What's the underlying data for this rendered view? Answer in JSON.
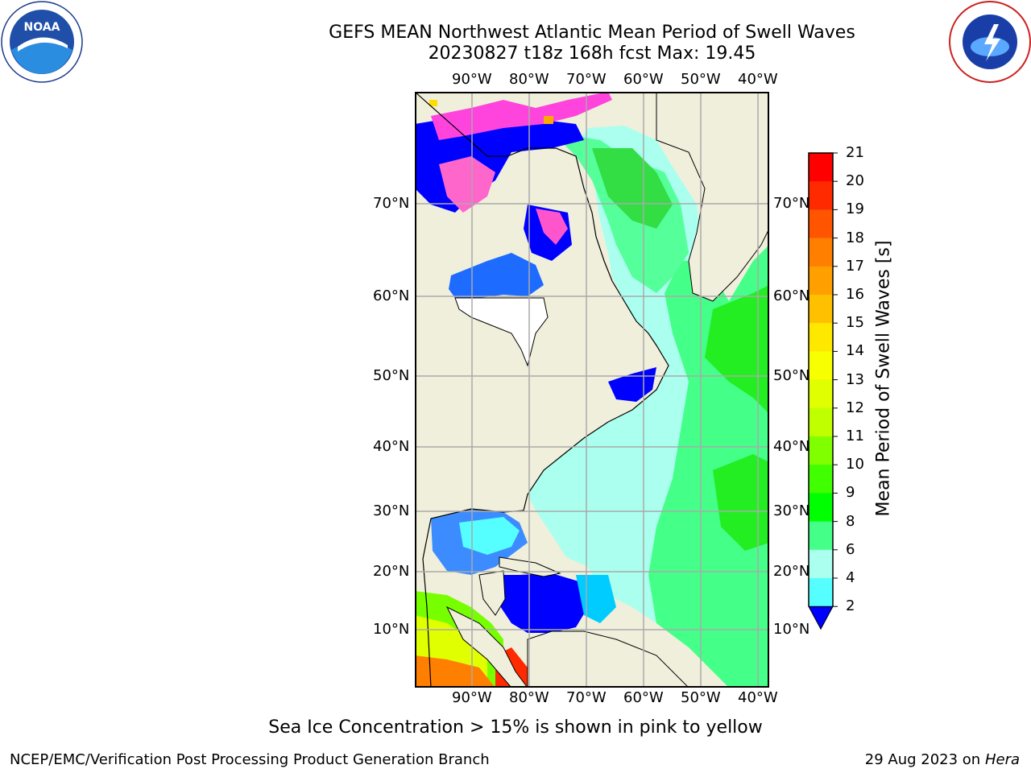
{
  "title_line1": "GEFS MEAN Northwest Atlantic Mean Period of Swell Waves",
  "title_line2": "20230827 t18z 168h fcst   Max: 19.45",
  "logo_left_text": "NOAA",
  "logo_right_text": "NATIONAL WEATHER SERVICE",
  "lon_labels": [
    "90°W",
    "80°W",
    "70°W",
    "60°W",
    "50°W",
    "40°W"
  ],
  "lat_labels": [
    "70°N",
    "60°N",
    "50°N",
    "40°N",
    "30°N",
    "20°N",
    "10°N"
  ],
  "colorbar": {
    "title": "Mean Period of Swell Waves [s]",
    "ticks": [
      "21",
      "20",
      "19",
      "18",
      "17",
      "16",
      "15",
      "14",
      "13",
      "12",
      "11",
      "10",
      "9",
      "8",
      "6",
      "4",
      "2"
    ],
    "colors": [
      "#ff0000",
      "#ff2a00",
      "#ff5500",
      "#ff7f00",
      "#ff9f00",
      "#ffc000",
      "#ffe800",
      "#f8ff00",
      "#e0ff00",
      "#c0ff00",
      "#80ff00",
      "#40ff00",
      "#00ff00",
      "#44ff88",
      "#aaffee",
      "#55ffff",
      "#00ffff",
      "#00ccff",
      "#0066ff"
    ],
    "under_color": "#0000ff"
  },
  "note": "Sea Ice Concentration > 15% is shown in pink to yellow",
  "footer_left": "NCEP/EMC/Verification Post Processing Product Generation Branch",
  "footer_right_date": "29 Aug 2023 on",
  "footer_right_host": "Hera"
}
